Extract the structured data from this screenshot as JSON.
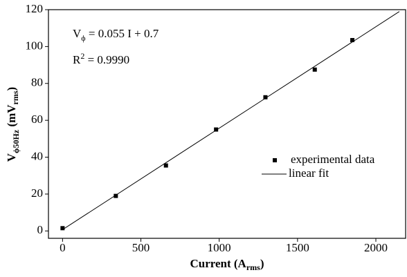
{
  "chart_data": {
    "type": "scatter",
    "x_label": {
      "text": "Current (A",
      "sub": "rms",
      "tail": ")"
    },
    "y_label": {
      "text": "V",
      "sub": "ϕ50Hz",
      "mid": "  (mV",
      "sub2": "rms",
      "tail": ")"
    },
    "annotations": [
      {
        "text": "V",
        "sub": "ϕ",
        "tail": " = 0.055 I + 0.7"
      },
      {
        "text": "R",
        "sup": "2",
        "tail": " = 0.9990"
      }
    ],
    "series": [
      {
        "name": "experimental data",
        "type": "scatter",
        "color": "#000000",
        "x": [
          0,
          340,
          660,
          980,
          1295,
          1610,
          1850
        ],
        "values": [
          1.5,
          19,
          35.5,
          55,
          72.5,
          87.5,
          103.5
        ]
      },
      {
        "name": "linear fit",
        "type": "line",
        "color": "#000000",
        "x": [
          0,
          2150
        ],
        "values": [
          0.7,
          119
        ]
      }
    ],
    "xlim": [
      -90,
      2190
    ],
    "ylim": [
      -4,
      120
    ],
    "xticks": [
      0,
      500,
      1000,
      1500,
      2000
    ],
    "yticks": [
      0,
      20,
      40,
      60,
      80,
      100,
      120
    ],
    "grid": false,
    "legend": "right"
  }
}
